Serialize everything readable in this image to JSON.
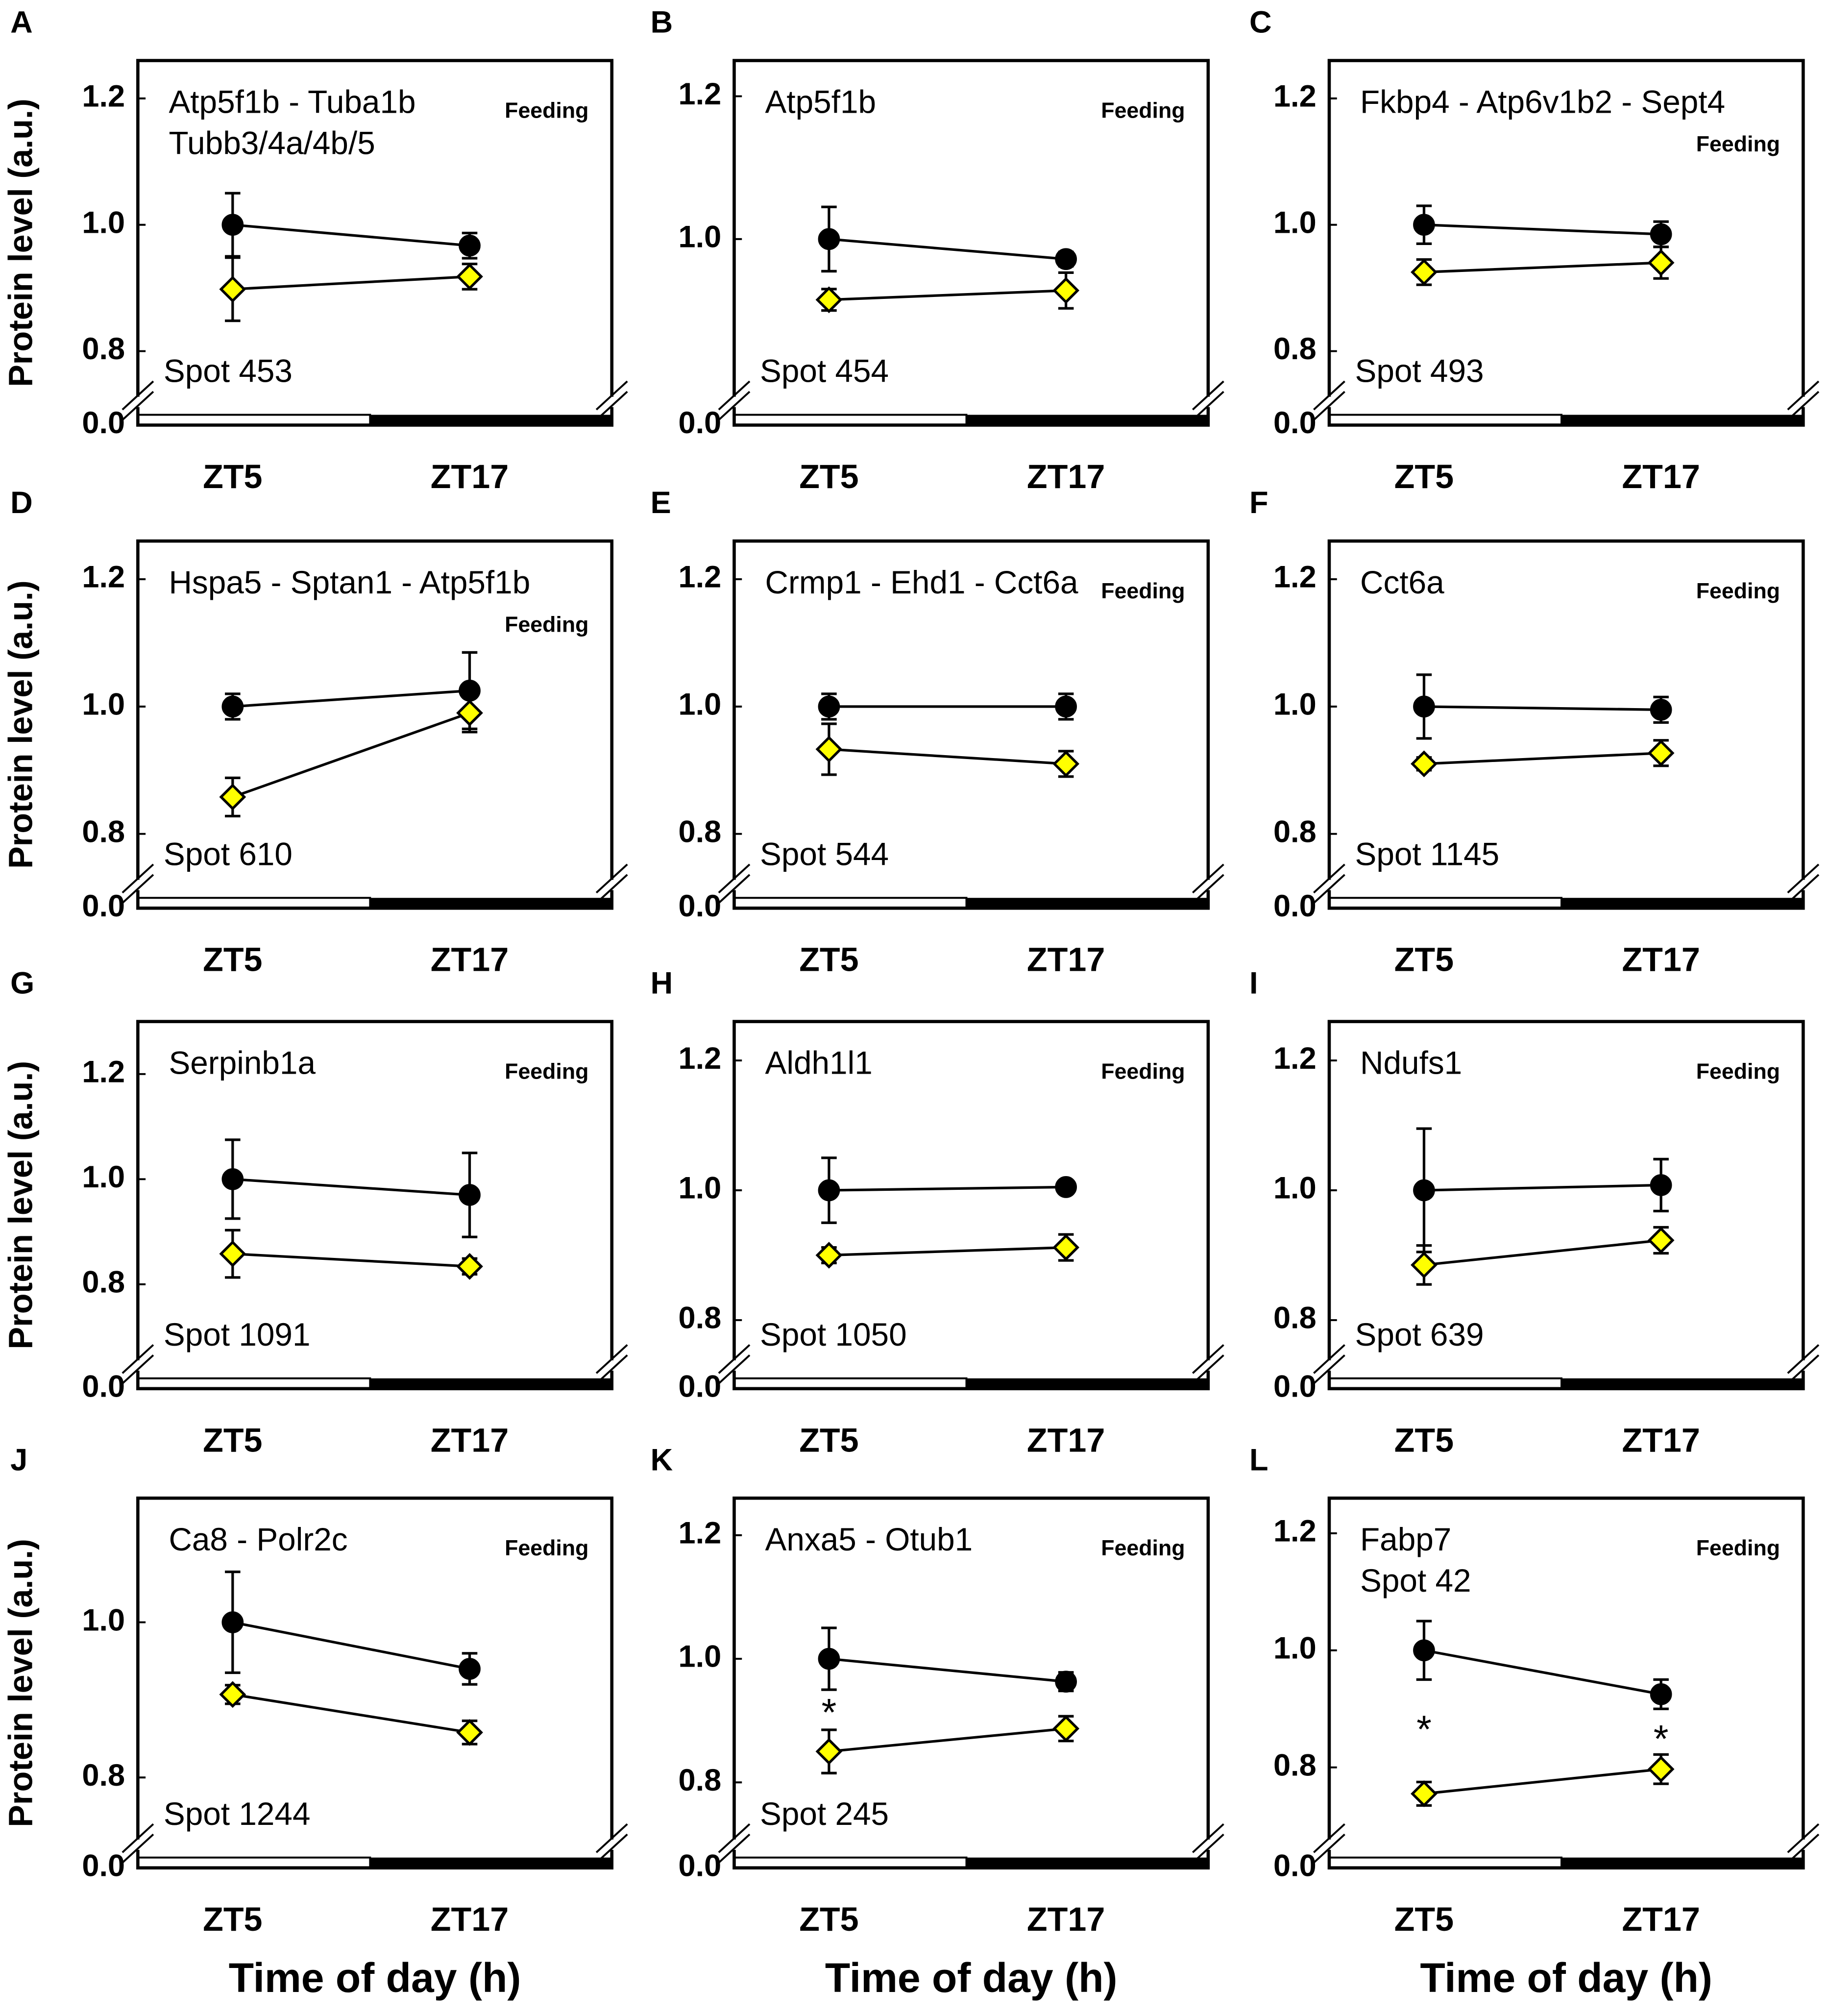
{
  "chart_data": [
    {
      "type": "line",
      "panel": "A",
      "title_lines": [
        "Atp5f1b - Tuba1b",
        "Tubb3/4a/4b/5"
      ],
      "annotation": "Feeding",
      "spot": "Spot 453",
      "ylabel": "Protein level (a.u.)",
      "categories": [
        "ZT5",
        "ZT17"
      ],
      "ylim": [
        0.74,
        1.26
      ],
      "yticks": [
        {
          "value": 0,
          "label": "0.0"
        },
        0.8,
        {
          "value": 1,
          "label": "1.0"
        },
        1.2
      ],
      "series": [
        {
          "color": "#000000",
          "marker": "circle",
          "values": [
            1.0,
            0.967
          ],
          "errors": [
            0.05,
            0.02
          ]
        },
        {
          "color": "#ffff00",
          "marker": "diamond",
          "values": [
            0.898,
            0.918
          ],
          "errors": [
            0.05,
            0.02
          ]
        }
      ]
    },
    {
      "type": "line",
      "panel": "B",
      "title_lines": [
        "Atp5f1b"
      ],
      "annotation": "Feeding",
      "spot": "Spot 454",
      "categories": [
        "ZT5",
        "ZT17"
      ],
      "ylim": [
        0.79,
        1.25
      ],
      "yticks": [
        {
          "value": 0,
          "label": "0.0"
        },
        {
          "value": 1,
          "label": "1.0"
        },
        1.2
      ],
      "series": [
        {
          "color": "#000000",
          "marker": "circle",
          "values": [
            1.0,
            0.972
          ],
          "errors": [
            0.045,
            0.01
          ]
        },
        {
          "color": "#ffff00",
          "marker": "diamond",
          "values": [
            0.915,
            0.928
          ],
          "errors": [
            0.015,
            0.025
          ]
        }
      ]
    },
    {
      "type": "line",
      "panel": "C",
      "title_lines": [
        "Fkbp4 - Atp6v1b2 - Sept4"
      ],
      "annotation": "Feeding",
      "spot": "Spot 493",
      "categories": [
        "ZT5",
        "ZT17"
      ],
      "ylim": [
        0.74,
        1.26
      ],
      "yticks": [
        {
          "value": 0,
          "label": "0.0"
        },
        0.8,
        {
          "value": 1,
          "label": "1.0"
        },
        1.2
      ],
      "series": [
        {
          "color": "#000000",
          "marker": "circle",
          "values": [
            1.0,
            0.985
          ],
          "errors": [
            0.03,
            0.02
          ]
        },
        {
          "color": "#ffff00",
          "marker": "diamond",
          "values": [
            0.925,
            0.94
          ],
          "errors": [
            0.02,
            0.025
          ]
        }
      ]
    },
    {
      "type": "line",
      "panel": "D",
      "title_lines": [
        "Hspa5 - Sptan1 - Atp5f1b"
      ],
      "annotation": "Feeding",
      "spot": "Spot 610",
      "ylabel": "Protein level (a.u.)",
      "categories": [
        "ZT5",
        "ZT17"
      ],
      "ylim": [
        0.74,
        1.26
      ],
      "yticks": [
        {
          "value": 0,
          "label": "0.0"
        },
        0.8,
        {
          "value": 1,
          "label": "1.0"
        },
        1.2
      ],
      "series": [
        {
          "color": "#000000",
          "marker": "circle",
          "values": [
            1.0,
            1.025
          ],
          "errors": [
            0.02,
            0.06
          ]
        },
        {
          "color": "#ffff00",
          "marker": "diamond",
          "values": [
            0.858,
            0.99
          ],
          "errors": [
            0.03,
            0.03
          ]
        }
      ]
    },
    {
      "type": "line",
      "panel": "E",
      "title_lines": [
        "Crmp1 - Ehd1 - Cct6a"
      ],
      "annotation": "Feeding",
      "spot": "Spot 544",
      "categories": [
        "ZT5",
        "ZT17"
      ],
      "ylim": [
        0.74,
        1.26
      ],
      "yticks": [
        {
          "value": 0,
          "label": "0.0"
        },
        0.8,
        {
          "value": 1,
          "label": "1.0"
        },
        1.2
      ],
      "series": [
        {
          "color": "#000000",
          "marker": "circle",
          "values": [
            1.0,
            1.0
          ],
          "errors": [
            0.02,
            0.02
          ]
        },
        {
          "color": "#ffff00",
          "marker": "diamond",
          "values": [
            0.933,
            0.91
          ],
          "errors": [
            0.04,
            0.02
          ]
        }
      ]
    },
    {
      "type": "line",
      "panel": "F",
      "title_lines": [
        "Cct6a"
      ],
      "annotation": "Feeding",
      "spot": "Spot 1145",
      "categories": [
        "ZT5",
        "ZT17"
      ],
      "ylim": [
        0.74,
        1.26
      ],
      "yticks": [
        {
          "value": 0,
          "label": "0.0"
        },
        0.8,
        {
          "value": 1,
          "label": "1.0"
        },
        1.2
      ],
      "series": [
        {
          "color": "#000000",
          "marker": "circle",
          "values": [
            1.0,
            0.995
          ],
          "errors": [
            0.05,
            0.02
          ]
        },
        {
          "color": "#ffff00",
          "marker": "diamond",
          "values": [
            0.91,
            0.927
          ],
          "errors": [
            0.01,
            0.02
          ]
        }
      ]
    },
    {
      "type": "line",
      "panel": "G",
      "title_lines": [
        "Serpinb1a"
      ],
      "annotation": "Feeding",
      "spot": "Spot 1091",
      "ylabel": "Protein level (a.u.)",
      "categories": [
        "ZT5",
        "ZT17"
      ],
      "ylim": [
        0.67,
        1.3
      ],
      "yticks": [
        {
          "value": 0,
          "label": "0.0"
        },
        0.8,
        {
          "value": 1,
          "label": "1.0"
        },
        1.2
      ],
      "series": [
        {
          "color": "#000000",
          "marker": "circle",
          "values": [
            1.0,
            0.97
          ],
          "errors": [
            0.075,
            0.08
          ]
        },
        {
          "color": "#ffff00",
          "marker": "diamond",
          "values": [
            0.858,
            0.834
          ],
          "errors": [
            0.045,
            0.015
          ]
        }
      ]
    },
    {
      "type": "line",
      "panel": "H",
      "title_lines": [
        "Aldh1l1"
      ],
      "annotation": "Feeding",
      "spot": "Spot 1050",
      "categories": [
        "ZT5",
        "ZT17"
      ],
      "ylim": [
        0.75,
        1.26
      ],
      "yticks": [
        {
          "value": 0,
          "label": "0.0"
        },
        0.8,
        {
          "value": 1,
          "label": "1.0"
        },
        1.2
      ],
      "series": [
        {
          "color": "#000000",
          "marker": "circle",
          "values": [
            1.0,
            1.005
          ],
          "errors": [
            0.05,
            0.01
          ]
        },
        {
          "color": "#ffff00",
          "marker": "diamond",
          "values": [
            0.9,
            0.912
          ],
          "errors": [
            0.012,
            0.02
          ]
        }
      ]
    },
    {
      "type": "line",
      "panel": "I",
      "title_lines": [
        "Ndufs1"
      ],
      "annotation": "Feeding",
      "spot": "Spot 639",
      "categories": [
        "ZT5",
        "ZT17"
      ],
      "ylim": [
        0.75,
        1.26
      ],
      "yticks": [
        {
          "value": 0,
          "label": "0.0"
        },
        0.8,
        {
          "value": 1,
          "label": "1.0"
        },
        1.2
      ],
      "series": [
        {
          "color": "#000000",
          "marker": "circle",
          "values": [
            1.0,
            1.008
          ],
          "errors": [
            0.095,
            0.04
          ]
        },
        {
          "color": "#ffff00",
          "marker": "diamond",
          "values": [
            0.885,
            0.923
          ],
          "errors": [
            0.03,
            0.02
          ]
        }
      ]
    },
    {
      "type": "line",
      "panel": "J",
      "title_lines": [
        "Ca8 - Polr2c"
      ],
      "annotation": "Feeding",
      "spot": "Spot 1244",
      "ylabel": "Protein level (a.u.)",
      "xlabel": "Time of day (h)",
      "categories": [
        "ZT5",
        "ZT17"
      ],
      "ylim": [
        0.73,
        1.16
      ],
      "yticks": [
        {
          "value": 0,
          "label": "0.0"
        },
        0.8,
        {
          "value": 1,
          "label": "1.0"
        }
      ],
      "series": [
        {
          "color": "#000000",
          "marker": "circle",
          "values": [
            1.0,
            0.94
          ],
          "errors": [
            0.065,
            0.02
          ]
        },
        {
          "color": "#ffff00",
          "marker": "diamond",
          "values": [
            0.907,
            0.858
          ],
          "errors": [
            0.012,
            0.015
          ]
        }
      ]
    },
    {
      "type": "line",
      "panel": "K",
      "title_lines": [
        "Anxa5 - Otub1"
      ],
      "annotation": "Feeding",
      "spot": "Spot 245",
      "xlabel": "Time of day (h)",
      "categories": [
        "ZT5",
        "ZT17"
      ],
      "ylim": [
        0.72,
        1.26
      ],
      "yticks": [
        {
          "value": 0,
          "label": "0.0"
        },
        0.8,
        {
          "value": 1,
          "label": "1.0"
        },
        1.2
      ],
      "series": [
        {
          "color": "#000000",
          "marker": "circle",
          "values": [
            1.0,
            0.963
          ],
          "errors": [
            0.05,
            0.015
          ]
        },
        {
          "color": "#ffff00",
          "marker": "diamond",
          "values": [
            0.85,
            0.887
          ],
          "errors": [
            0.035,
            0.02
          ]
        }
      ],
      "significance": [
        {
          "category": "ZT5",
          "text": "*"
        }
      ]
    },
    {
      "type": "line",
      "panel": "L",
      "title_lines": [
        "Fabp7",
        "Spot 42"
      ],
      "annotation": "Feeding",
      "xlabel": "Time of day (h)",
      "categories": [
        "ZT5",
        "ZT17"
      ],
      "ylim": [
        0.69,
        1.26
      ],
      "yticks": [
        {
          "value": 0,
          "label": "0.0"
        },
        0.8,
        {
          "value": 1,
          "label": "1.0"
        },
        1.2
      ],
      "series": [
        {
          "color": "#000000",
          "marker": "circle",
          "values": [
            1.0,
            0.925
          ],
          "errors": [
            0.05,
            0.025
          ]
        },
        {
          "color": "#ffff00",
          "marker": "diamond",
          "values": [
            0.755,
            0.797
          ],
          "errors": [
            0.02,
            0.025
          ]
        }
      ],
      "significance": [
        {
          "category": "ZT5",
          "text": "*"
        },
        {
          "category": "ZT17",
          "text": "*"
        }
      ]
    }
  ]
}
